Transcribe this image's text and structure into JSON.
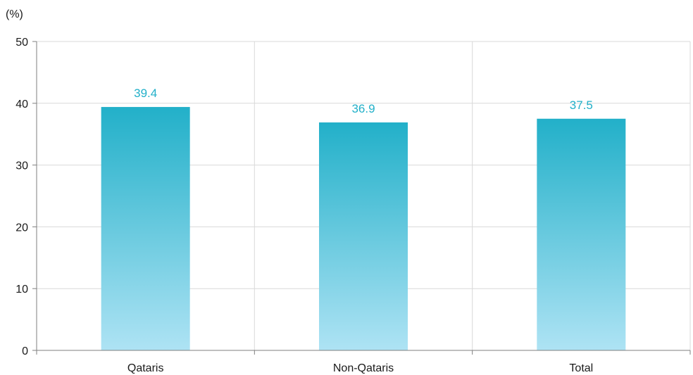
{
  "chart_data": {
    "type": "bar",
    "unit_label": "(%)",
    "categories": [
      "Qataris",
      "Non-Qataris",
      "Total"
    ],
    "values": [
      39.4,
      36.9,
      37.5
    ],
    "data_labels": [
      "39.4",
      "36.9",
      "37.5"
    ],
    "ylim": [
      0,
      50
    ],
    "yticks": [
      0,
      10,
      20,
      30,
      40,
      50
    ],
    "ytick_labels": [
      "0",
      "10",
      "20",
      "30",
      "40",
      "50"
    ],
    "title": "",
    "xlabel": "",
    "ylabel": "",
    "grid": true,
    "legend": "none",
    "colors": {
      "bar_top": "#22b0c9",
      "bar_bottom": "#aee3f4",
      "data_label": "#22b0c9",
      "grid": "#d9d9d9",
      "axis": "#7f7f7f"
    }
  }
}
